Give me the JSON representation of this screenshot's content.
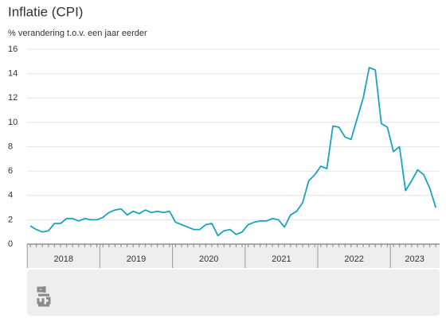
{
  "chart_data": {
    "type": "line",
    "title": "Inflatie (CPI)",
    "subtitle": "% verandering t.o.v. een jaar eerder",
    "color": "#1aa3c0",
    "ylim": [
      0,
      16
    ],
    "yticks": [
      0,
      2,
      4,
      6,
      8,
      10,
      12,
      14,
      16
    ],
    "grid": true,
    "years": [
      {
        "label": "2018",
        "values": [
          1.5,
          1.2,
          1.0,
          1.1,
          1.7,
          1.7,
          2.1,
          2.1,
          1.9,
          2.1,
          2.0,
          2.0
        ]
      },
      {
        "label": "2019",
        "values": [
          2.2,
          2.6,
          2.8,
          2.9,
          2.4,
          2.7,
          2.5,
          2.8,
          2.6,
          2.7,
          2.6,
          2.7
        ]
      },
      {
        "label": "2020",
        "values": [
          1.8,
          1.6,
          1.4,
          1.2,
          1.2,
          1.6,
          1.7,
          0.7,
          1.1,
          1.2,
          0.8,
          1.0
        ]
      },
      {
        "label": "2021",
        "values": [
          1.6,
          1.8,
          1.9,
          1.9,
          2.1,
          2.0,
          1.4,
          2.4,
          2.7,
          3.4,
          5.2,
          5.7
        ]
      },
      {
        "label": "2022",
        "values": [
          6.4,
          6.2,
          9.7,
          9.6,
          8.8,
          8.6,
          10.3,
          12.0,
          14.5,
          14.3,
          9.9,
          9.6
        ]
      },
      {
        "label": "2023",
        "values": [
          7.6,
          8.0,
          4.4,
          5.2,
          6.1,
          5.7,
          4.6,
          3.0
        ]
      }
    ]
  }
}
